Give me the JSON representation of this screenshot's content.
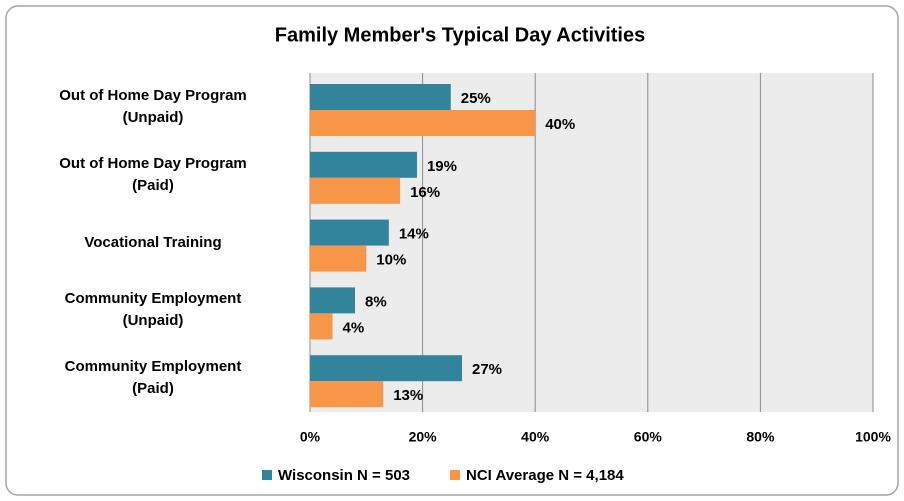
{
  "chart_data": {
    "type": "bar",
    "orientation": "horizontal",
    "title": "Family Member's Typical Day Activities",
    "categories": [
      "Out of Home Day Program\n(Unpaid)",
      "Out of Home Day Program\n(Paid)",
      "Vocational Training",
      "Community Employment\n(Unpaid)",
      "Community Employment\n(Paid)"
    ],
    "series": [
      {
        "name": "Wisconsin N = 503",
        "color": "#31849b",
        "values": [
          25,
          19,
          14,
          8,
          27
        ],
        "value_labels": [
          "25%",
          "19%",
          "14%",
          "8%",
          "27%"
        ]
      },
      {
        "name": "NCI Average N = 4,184",
        "color": "#f79646",
        "values": [
          40,
          16,
          10,
          4,
          13
        ],
        "value_labels": [
          "40%",
          "16%",
          "10%",
          "4%",
          "13%"
        ]
      }
    ],
    "xlim": [
      0,
      100
    ],
    "xticks": [
      {
        "value": 0,
        "label": "0%"
      },
      {
        "value": 20,
        "label": "20%"
      },
      {
        "value": 40,
        "label": "40%"
      },
      {
        "value": 60,
        "label": "60%"
      },
      {
        "value": 80,
        "label": "80%"
      },
      {
        "value": 100,
        "label": "100%"
      }
    ],
    "grid": true,
    "legend": "bottom"
  }
}
